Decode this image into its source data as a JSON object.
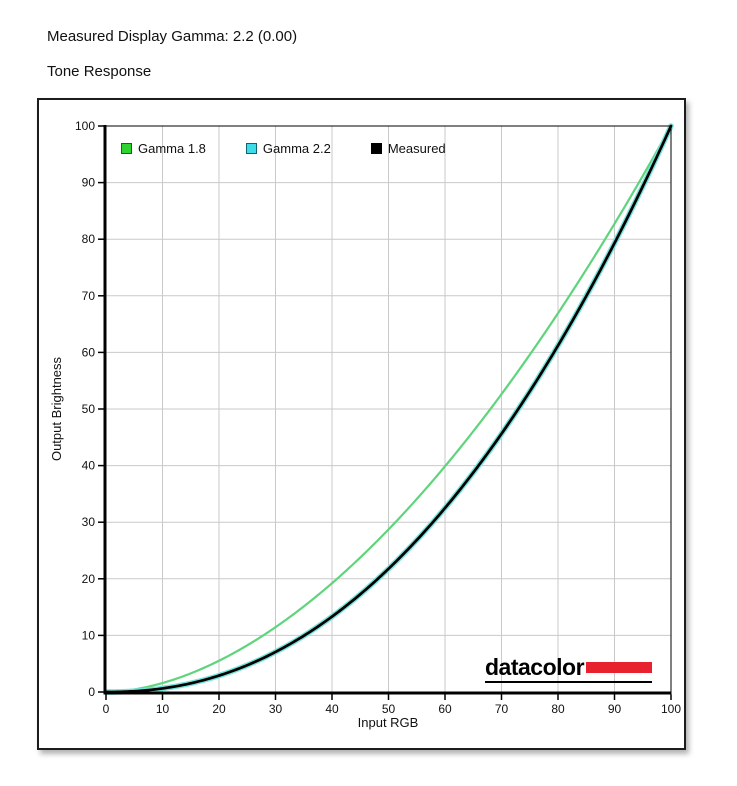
{
  "page": {
    "measured_gamma_label": "Measured Display Gamma: 2.2 (0.00)",
    "section_title": "Tone Response"
  },
  "logo": {
    "text": "datacolor",
    "bar_color": "#e8212e",
    "text_color": "#000000"
  },
  "chart_data": {
    "type": "line",
    "title": "",
    "xlabel": "Input RGB",
    "ylabel": "Output Brightness",
    "xlim": [
      0,
      100
    ],
    "ylim": [
      0,
      100
    ],
    "x_ticks": [
      0,
      10,
      20,
      30,
      40,
      50,
      60,
      70,
      80,
      90,
      100
    ],
    "y_ticks": [
      0,
      10,
      20,
      30,
      40,
      50,
      60,
      70,
      80,
      90,
      100
    ],
    "grid": true,
    "grid_color": "#c9c9c9",
    "axis_color": "#000000",
    "legend_position": "top-left-inside",
    "x": [
      0,
      10,
      20,
      30,
      40,
      50,
      60,
      70,
      80,
      90,
      100
    ],
    "series": [
      {
        "name": "Gamma 1.8",
        "gamma": 1.8,
        "curve_color": "#5fd47d",
        "curve_width": 2.2,
        "legend_fill": "#2fd32f",
        "legend_stroke": "#0b6b0b",
        "values": [
          0,
          1.6,
          5.5,
          11.5,
          19.2,
          28.7,
          39.9,
          52.6,
          66.9,
          82.7,
          100
        ]
      },
      {
        "name": "Gamma 2.2",
        "gamma": 2.2,
        "curve_color": "#74e2da",
        "curve_width": 5.5,
        "legend_fill": "#3edce9",
        "legend_stroke": "#0c6570",
        "values": [
          0,
          0.6,
          2.9,
          7.1,
          13.3,
          21.8,
          32.5,
          45.6,
          61.2,
          79.3,
          100
        ]
      },
      {
        "name": "Measured",
        "gamma": 2.2,
        "curve_color": "#000000",
        "curve_width": 2.7,
        "legend_fill": "#000000",
        "legend_stroke": "#000000",
        "values": [
          0,
          0.6,
          2.9,
          7.1,
          13.3,
          21.8,
          32.5,
          45.6,
          61.2,
          79.3,
          100
        ]
      }
    ]
  }
}
